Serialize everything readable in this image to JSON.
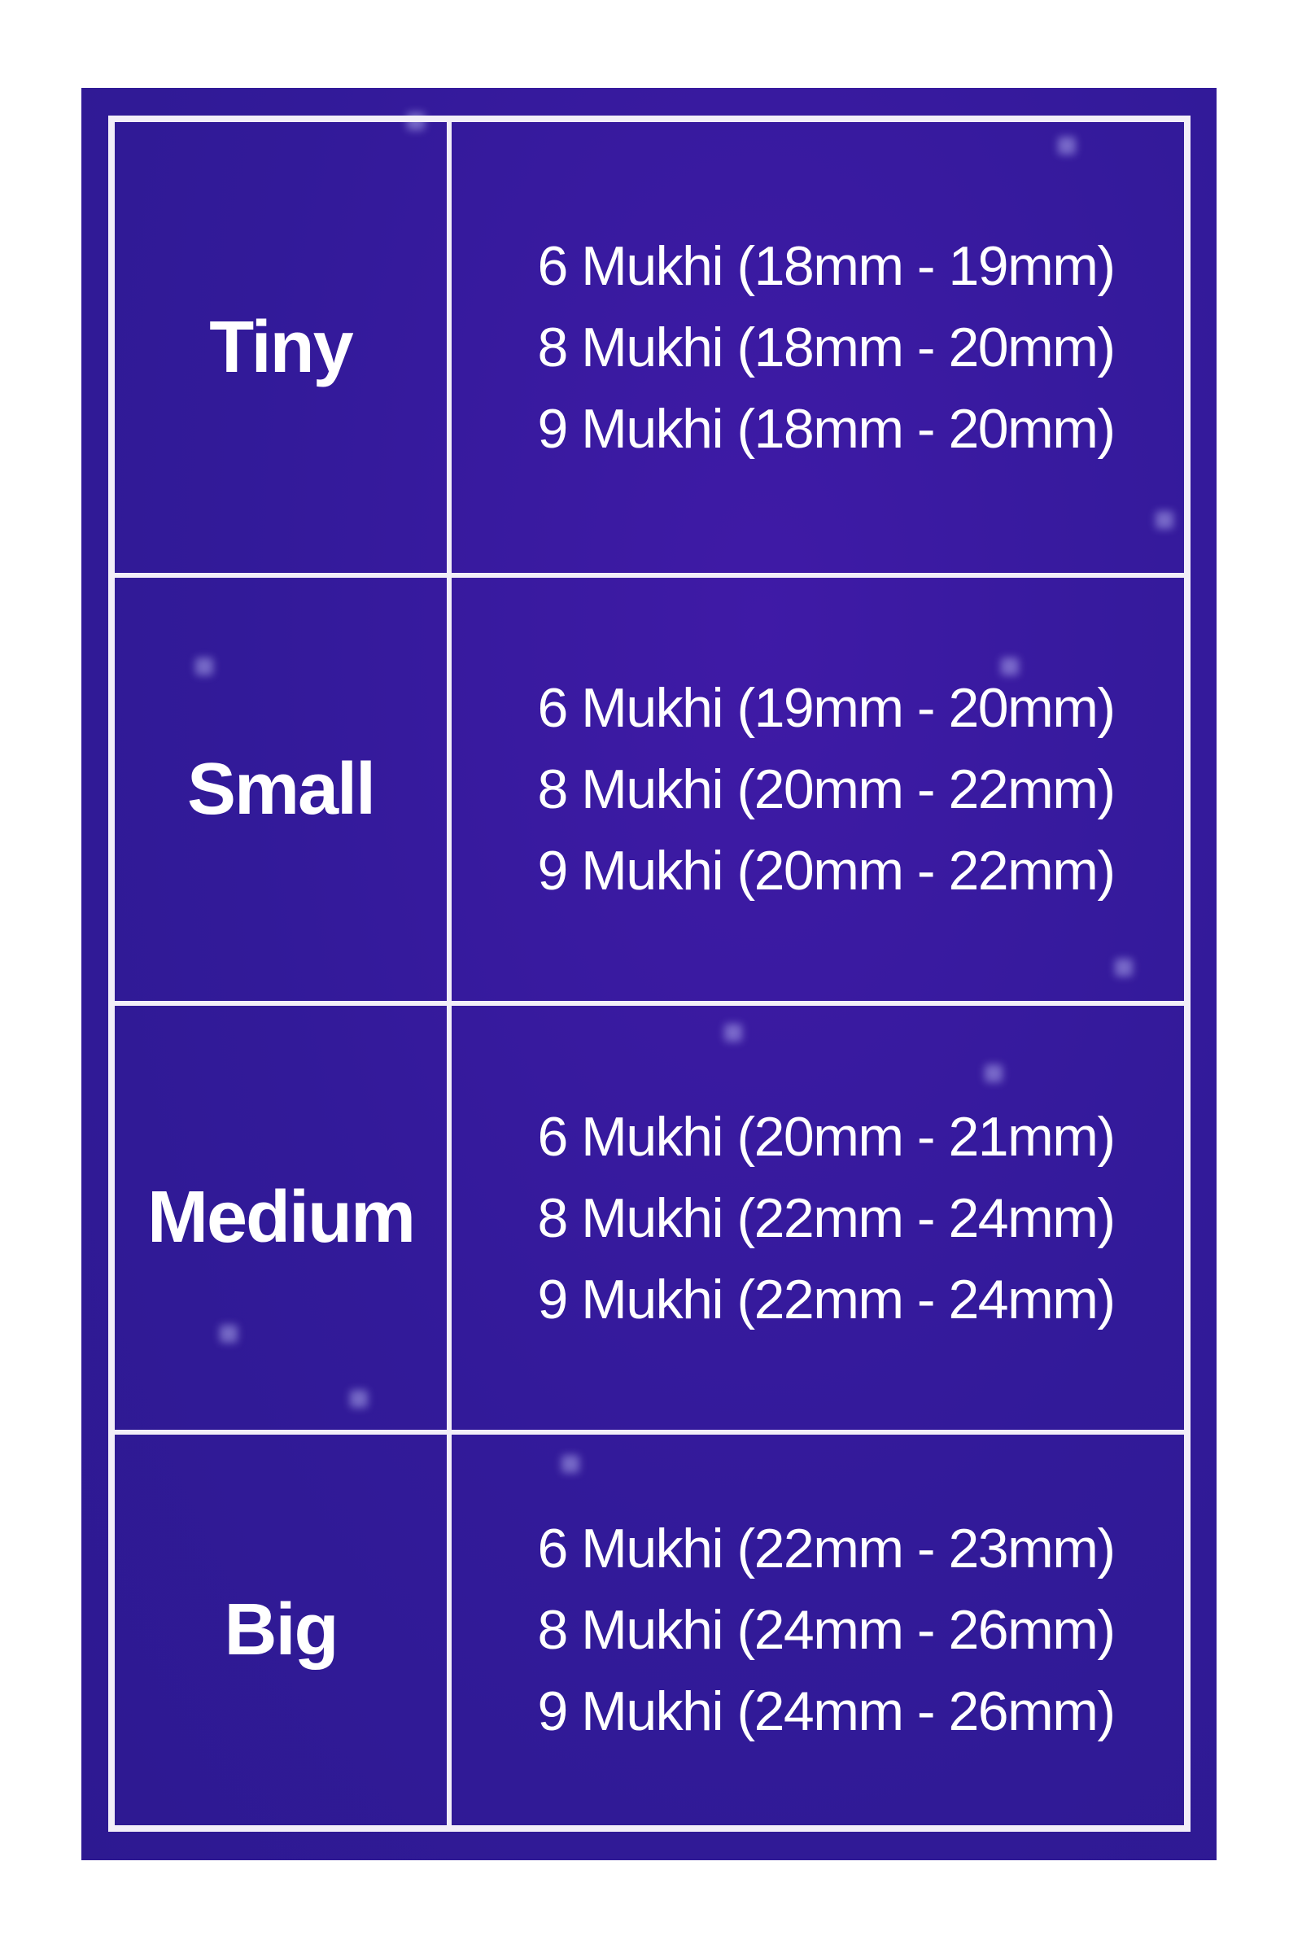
{
  "table": {
    "rows": [
      {
        "size": "Tiny",
        "lines": [
          "6 Mukhi (18mm - 19mm)",
          "8 Mukhi (18mm - 20mm)",
          "9 Mukhi (18mm - 20mm)"
        ]
      },
      {
        "size": "Small",
        "lines": [
          "6 Mukhi (19mm - 20mm)",
          "8 Mukhi (20mm - 22mm)",
          "9 Mukhi (20mm - 22mm)"
        ]
      },
      {
        "size": "Medium",
        "lines": [
          "6 Mukhi (20mm - 21mm)",
          "8 Mukhi (22mm - 24mm)",
          "9 Mukhi (22mm - 24mm)"
        ]
      },
      {
        "size": "Big",
        "lines": [
          "6 Mukhi (22mm - 23mm)",
          "8 Mukhi (24mm - 26mm)",
          "9 Mukhi (24mm - 26mm)"
        ]
      }
    ]
  }
}
